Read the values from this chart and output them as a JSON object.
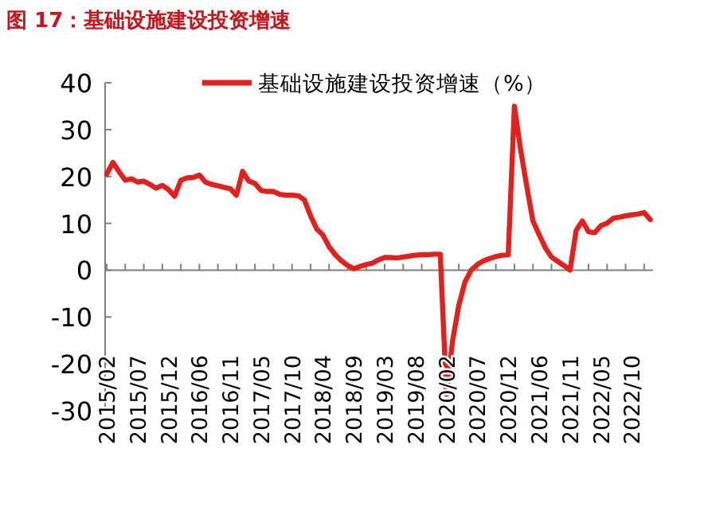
{
  "chart_data": {
    "type": "line",
    "title": "图 17：基础设施建设投资增速",
    "categories": [
      "2015/02",
      null,
      null,
      null,
      null,
      "2015/07",
      null,
      null,
      null,
      null,
      "2015/12",
      null,
      null,
      null,
      null,
      "2016/06",
      null,
      null,
      null,
      null,
      "2016/11",
      null,
      null,
      null,
      null,
      "2017/05",
      null,
      null,
      null,
      null,
      "2017/10",
      null,
      null,
      null,
      null,
      "2018/04",
      null,
      null,
      null,
      null,
      "2018/09",
      null,
      null,
      null,
      null,
      "2019/03",
      null,
      null,
      null,
      null,
      "2019/08",
      null,
      null,
      null,
      null,
      "2020/02",
      null,
      null,
      null,
      null,
      "2020/07",
      null,
      null,
      null,
      null,
      "2020/12",
      null,
      null,
      null,
      null,
      "2021/06",
      null,
      null,
      null,
      null,
      "2021/11",
      null,
      null,
      null,
      null,
      "2022/05",
      null,
      null,
      null,
      null,
      "2022/10",
      null,
      null,
      null
    ],
    "series": [
      {
        "name": "基础设施建设投资增速（%）",
        "color": "#e3201b",
        "values": [
          20.5,
          23,
          21,
          19.2,
          19.5,
          18.8,
          19,
          18.3,
          17.5,
          18.1,
          17.2,
          15.8,
          19.2,
          19.7,
          19.8,
          20.3,
          18.8,
          18.3,
          18,
          17.7,
          17.4,
          16,
          21.1,
          19,
          18.5,
          17,
          16.8,
          16.8,
          16.2,
          16,
          16,
          15.9,
          15,
          11.6,
          8.8,
          7.5,
          5,
          3.3,
          2,
          1,
          0.3,
          0.8,
          1.2,
          1.5,
          2.2,
          2.7,
          2.7,
          2.6,
          2.8,
          3,
          3.2,
          3.3,
          3.3,
          3.4,
          3.4,
          -26.5,
          -15,
          -7.5,
          -2.5,
          0,
          1.2,
          2,
          2.5,
          2.9,
          3.2,
          3.3,
          35,
          25.8,
          17.9,
          10.5,
          7.6,
          4.8,
          2.8,
          1.9,
          1,
          0,
          8.5,
          10.5,
          8.2,
          8,
          9.5,
          10,
          11.1,
          11.3,
          11.6,
          11.8,
          12,
          12.3,
          10.8
        ]
      }
    ],
    "ylim": [
      -30,
      40
    ],
    "yticks": [
      -30,
      -20,
      -10,
      0,
      10,
      20,
      30,
      40
    ],
    "legend": "top",
    "marker": "none",
    "line_style": "solid"
  }
}
